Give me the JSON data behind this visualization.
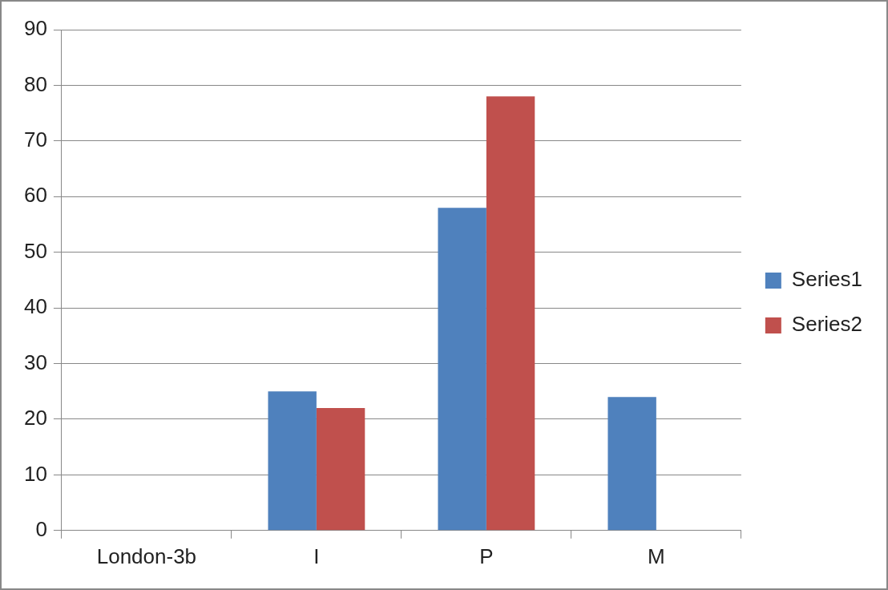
{
  "chart_data": {
    "type": "bar",
    "categories": [
      "London-3b",
      "I",
      "P",
      "M"
    ],
    "series": [
      {
        "name": "Series1",
        "color": "#4f81bd",
        "values": [
          null,
          25,
          58,
          24
        ]
      },
      {
        "name": "Series2",
        "color": "#c0504d",
        "values": [
          null,
          22,
          78,
          null
        ]
      }
    ],
    "ylim": [
      0,
      90
    ],
    "yticks": [
      0,
      10,
      20,
      30,
      40,
      50,
      60,
      70,
      80,
      90
    ],
    "grid": "y",
    "legend": "right"
  }
}
